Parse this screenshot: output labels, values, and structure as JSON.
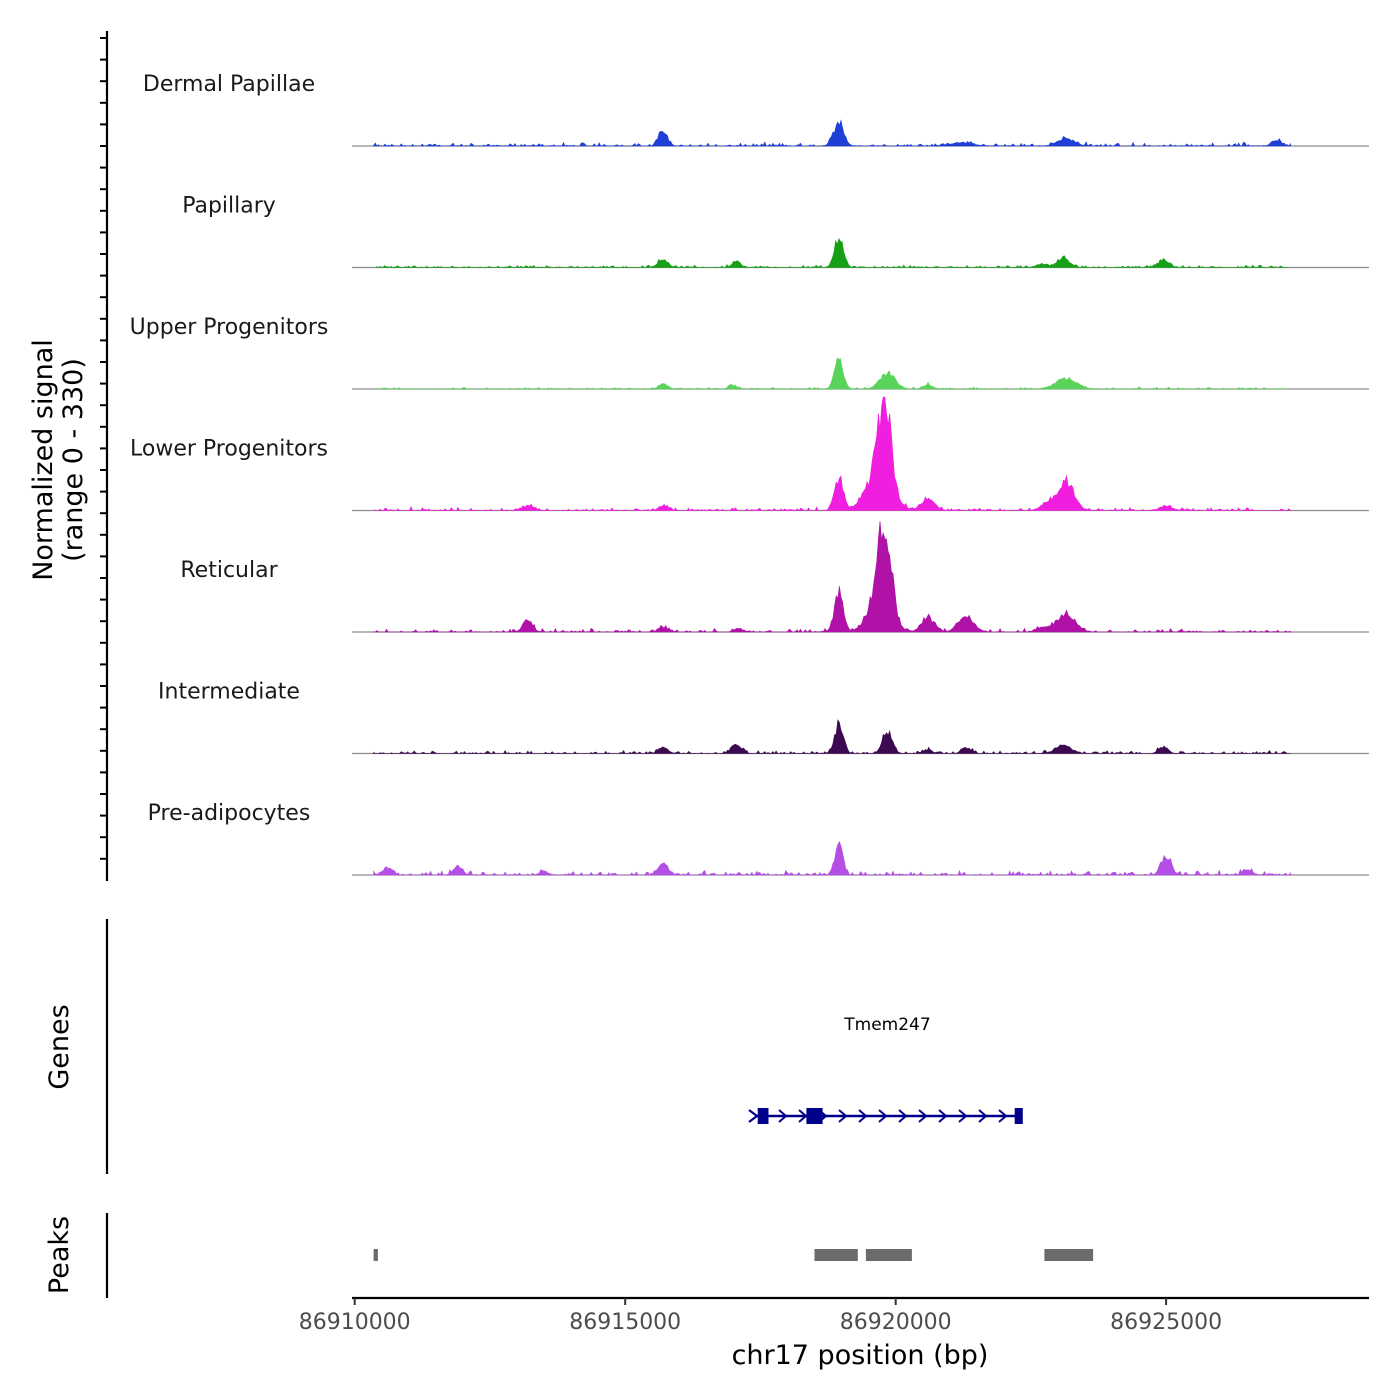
{
  "chart_data": {
    "type": "area",
    "title": "",
    "ylabel_line1": "Normalized signal",
    "ylabel_line2": "(range 0 - 330)",
    "genes_label": "Genes",
    "peaks_label": "Peaks",
    "xlabel": "chr17 position (bp)",
    "xlim": [
      86909950,
      86928750
    ],
    "ylim": [
      0,
      330
    ],
    "x_ticks": [
      86910000,
      86915000,
      86920000,
      86925000
    ],
    "x_tick_labels": [
      "86910000",
      "86915000",
      "86920000",
      "86925000"
    ],
    "baseline_noise": 6,
    "series": [
      {
        "name": "Dermal Papillae",
        "color": "#1f3fd6",
        "range": [
          86910350,
          86927300
        ],
        "noise": 7,
        "peaks": [
          [
            86915700,
            45,
            80
          ],
          [
            86918950,
            70,
            90
          ],
          [
            86923150,
            22,
            150
          ],
          [
            86927050,
            16,
            90
          ],
          [
            86921200,
            10,
            200
          ]
        ]
      },
      {
        "name": "Papillary",
        "color": "#16a016",
        "range": [
          86910400,
          86927250
        ],
        "noise": 5,
        "peaks": [
          [
            86918950,
            88,
            80
          ],
          [
            86915700,
            22,
            90
          ],
          [
            86917050,
            20,
            70
          ],
          [
            86923100,
            26,
            110
          ],
          [
            86924950,
            20,
            100
          ],
          [
            86922700,
            10,
            100
          ]
        ]
      },
      {
        "name": "Upper Progenitors",
        "color": "#5ad35a",
        "range": [
          86910400,
          86927250
        ],
        "noise": 4,
        "peaks": [
          [
            86918950,
            80,
            80
          ],
          [
            86919850,
            45,
            140
          ],
          [
            86923150,
            30,
            190
          ],
          [
            86915700,
            16,
            80
          ],
          [
            86917000,
            10,
            80
          ],
          [
            86920600,
            12,
            80
          ]
        ]
      },
      {
        "name": "Lower Progenitors",
        "color": "#f01fe0",
        "range": [
          86910350,
          86927300
        ],
        "noise": 7,
        "peaks": [
          [
            86918950,
            95,
            80
          ],
          [
            86919800,
            230,
            110
          ],
          [
            86919700,
            120,
            220
          ],
          [
            86920600,
            35,
            120
          ],
          [
            86923150,
            85,
            140
          ],
          [
            86922800,
            20,
            120
          ],
          [
            86913200,
            14,
            100
          ],
          [
            86915700,
            14,
            80
          ],
          [
            86925000,
            12,
            120
          ]
        ]
      },
      {
        "name": "Reticular",
        "color": "#b012a8",
        "range": [
          86910350,
          86927300
        ],
        "noise": 7,
        "peaks": [
          [
            86918950,
            115,
            80
          ],
          [
            86919800,
            230,
            120
          ],
          [
            86919700,
            100,
            200
          ],
          [
            86920600,
            40,
            120
          ],
          [
            86921300,
            45,
            140
          ],
          [
            86923150,
            55,
            170
          ],
          [
            86913200,
            30,
            90
          ],
          [
            86915700,
            14,
            90
          ],
          [
            86922700,
            14,
            100
          ],
          [
            86917100,
            10,
            80
          ]
        ]
      },
      {
        "name": "Intermediate",
        "color": "#3d0a52",
        "range": [
          86910350,
          86927300
        ],
        "noise": 6,
        "peaks": [
          [
            86918950,
            78,
            80
          ],
          [
            86919850,
            60,
            90
          ],
          [
            86917050,
            26,
            90
          ],
          [
            86915700,
            16,
            90
          ],
          [
            86921300,
            18,
            80
          ],
          [
            86923100,
            22,
            150
          ],
          [
            86924950,
            20,
            80
          ],
          [
            86920600,
            10,
            80
          ]
        ]
      },
      {
        "name": "Pre-adipocytes",
        "color": "#b44ee6",
        "range": [
          86910350,
          86927300
        ],
        "noise": 9,
        "peaks": [
          [
            86918950,
            95,
            70
          ],
          [
            86925000,
            55,
            90
          ],
          [
            86915700,
            35,
            90
          ],
          [
            86911900,
            25,
            80
          ],
          [
            86910600,
            22,
            90
          ],
          [
            86926500,
            16,
            90
          ],
          [
            86913500,
            10,
            80
          ]
        ]
      }
    ],
    "gene": {
      "name": "Tmem247",
      "color": "#00008b",
      "strand": "+",
      "start": 86917400,
      "end": 86922300,
      "exons": [
        [
          86917450,
          86917650
        ],
        [
          86918350,
          86918650
        ],
        [
          86922200,
          86922350
        ]
      ]
    },
    "peaks_track": {
      "color": "#6b6b6b",
      "regions": [
        [
          86910350,
          86910430
        ],
        [
          86918500,
          86919300
        ],
        [
          86919450,
          86920300
        ],
        [
          86922750,
          86923650
        ]
      ]
    }
  }
}
